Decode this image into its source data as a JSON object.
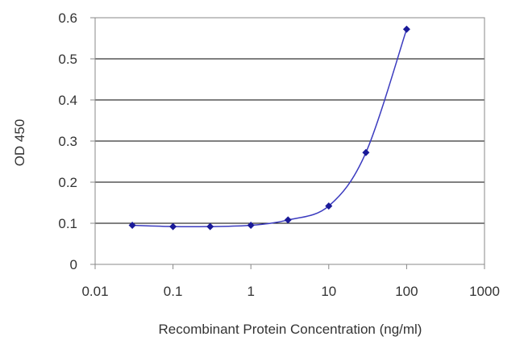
{
  "chart_data": {
    "type": "line",
    "title": "",
    "xlabel": "Recombinant Protein Concentration (ng/ml)",
    "ylabel": "OD 450",
    "x_scale": "log",
    "xlim": [
      0.01,
      1000
    ],
    "ylim": [
      0,
      0.6
    ],
    "x_ticks": [
      "0.01",
      "0.1",
      "1",
      "10",
      "100",
      "1000"
    ],
    "y_ticks": [
      "0",
      "0.1",
      "0.2",
      "0.3",
      "0.4",
      "0.5",
      "0.6"
    ],
    "grid": "horizontal",
    "series": [
      {
        "x": [
          0.03,
          0.1,
          0.3,
          1,
          3,
          10,
          30,
          100
        ],
        "y": [
          0.095,
          0.092,
          0.092,
          0.095,
          0.108,
          0.142,
          0.272,
          0.572
        ]
      }
    ],
    "colors": {
      "line": "#3b3bbf",
      "marker": "#1a1a99",
      "grid": "#000000",
      "axis": "#888888"
    }
  }
}
